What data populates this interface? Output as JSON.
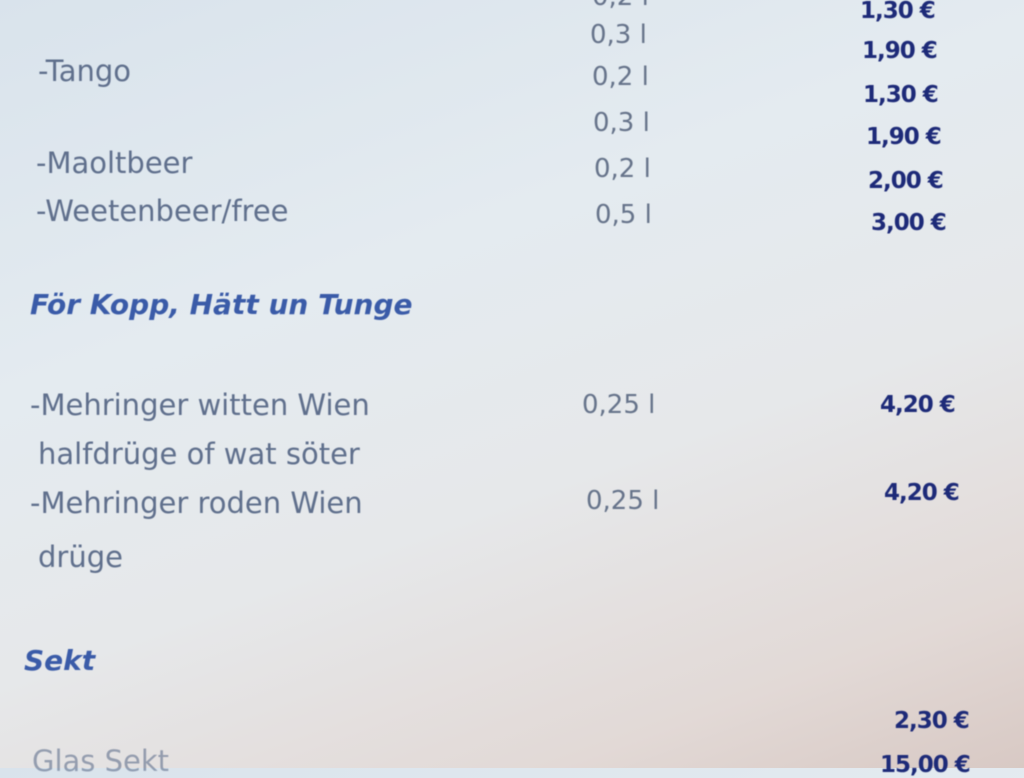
{
  "items": [
    {
      "name": "-Tango",
      "volumes": [
        "0,3 l",
        "0,2 l",
        "0,3 l"
      ],
      "prices": [
        "1,90 €",
        "1,30 €",
        "1,90 €"
      ]
    },
    {
      "name": "-Maoltbeer",
      "volume": "0,2 l",
      "price": "2,00 €"
    },
    {
      "name": "-Weetenbeer/free",
      "volume": "0,5 l",
      "price": "3,00 €"
    }
  ],
  "top_partial": {
    "volume": "0,2 l",
    "price": "1,30 €"
  },
  "section_wine": {
    "title": "För Kopp, Hätt un Tunge",
    "items": [
      {
        "name": "-Mehringer witten Wien",
        "detail": "halfdrüge of wat söter",
        "volume": "0,25 l",
        "price": "4,20 €"
      },
      {
        "name": "-Mehringer roden Wien",
        "detail": "drüge",
        "volume": "0,25 l",
        "price": "4,20 €"
      }
    ]
  },
  "section_sekt": {
    "title": "Sekt",
    "items": [
      {
        "name": "Glas Sekt",
        "price": "2,30 €",
        "price2": "15,00 €"
      }
    ]
  }
}
